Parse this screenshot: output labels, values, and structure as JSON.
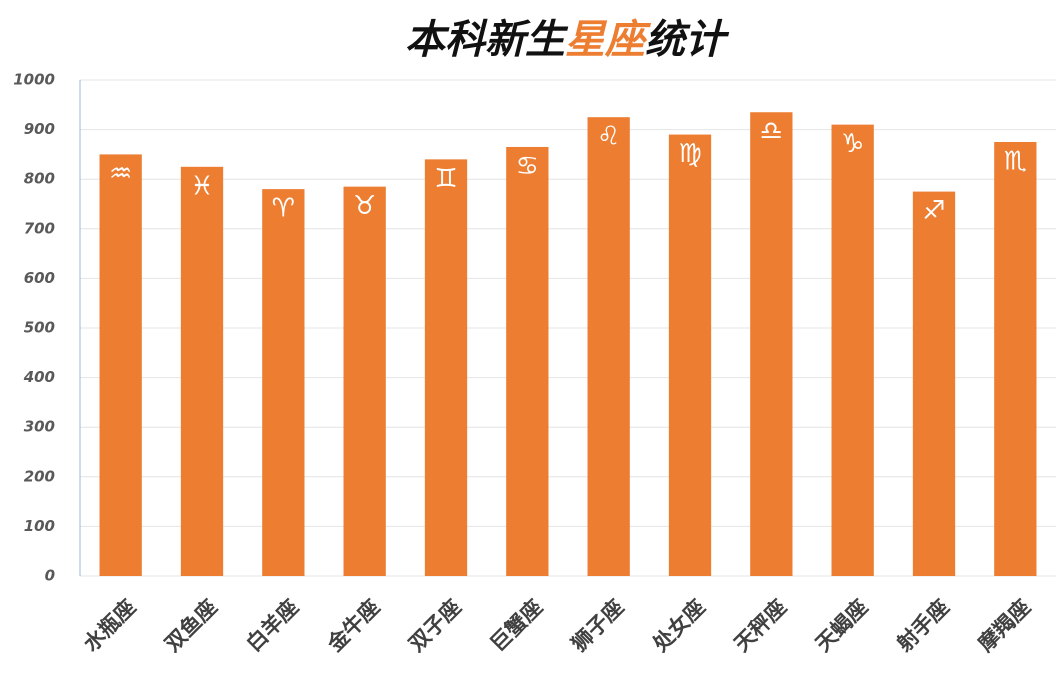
{
  "chart_data": {
    "type": "bar",
    "title": [
      "本科新生",
      "星座",
      "统计"
    ],
    "categories": [
      "水瓶座",
      "双鱼座",
      "白羊座",
      "金牛座",
      "双子座",
      "巨蟹座",
      "狮子座",
      "处女座",
      "天秤座",
      "天蝎座",
      "射手座",
      "摩羯座"
    ],
    "symbols": [
      "♒",
      "♓",
      "♈",
      "♉",
      "♊",
      "♋",
      "♌",
      "♍",
      "♎",
      "♑",
      "♐",
      "♏"
    ],
    "values": [
      850,
      825,
      780,
      785,
      840,
      865,
      925,
      890,
      935,
      910,
      775,
      875
    ],
    "color": "#ed7d31",
    "ylim": [
      0,
      1000
    ],
    "yticks": [
      0,
      100,
      200,
      300,
      400,
      500,
      600,
      700,
      800,
      900,
      1000
    ],
    "grid": true
  }
}
